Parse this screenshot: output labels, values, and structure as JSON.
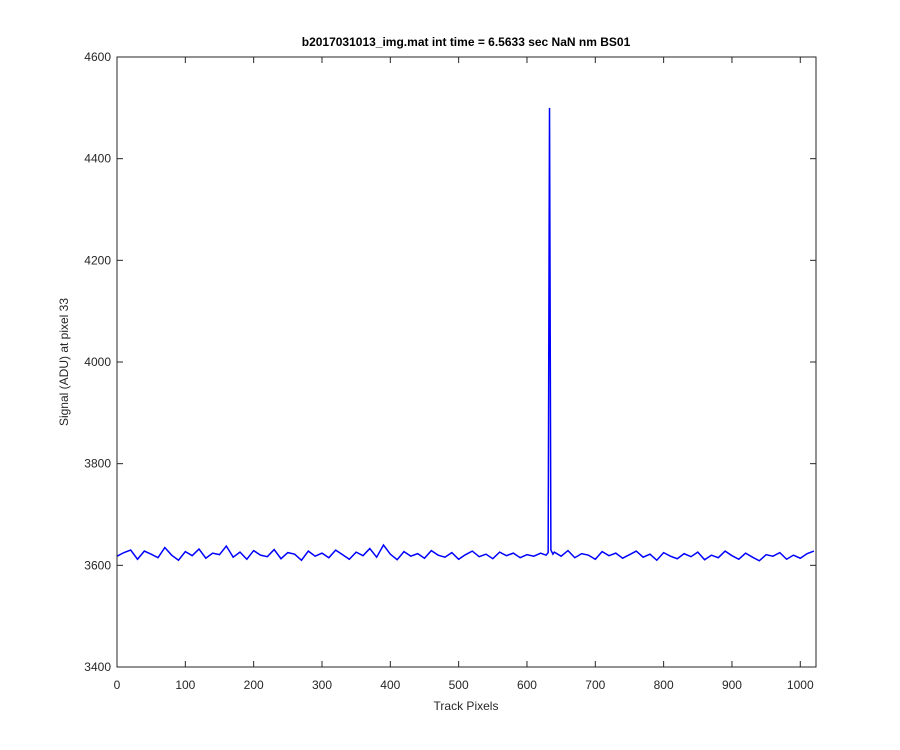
{
  "chart_data": {
    "type": "line",
    "title": "b2017031013_img.mat int time = 6.5633 sec  NaN nm BS01",
    "x_label": "Track Pixels",
    "y_label": "Signal (ADU) at pixel 33",
    "xlim": [
      0,
      1023
    ],
    "ylim": [
      3400,
      4600
    ],
    "xticks": [
      0,
      100,
      200,
      300,
      400,
      500,
      600,
      700,
      800,
      900,
      1000
    ],
    "yticks": [
      3400,
      3600,
      3800,
      4000,
      4200,
      4400,
      4600
    ],
    "x": [
      0,
      10,
      20,
      30,
      40,
      50,
      60,
      70,
      80,
      90,
      100,
      110,
      120,
      130,
      140,
      150,
      160,
      170,
      180,
      190,
      200,
      210,
      220,
      230,
      240,
      250,
      260,
      270,
      280,
      290,
      300,
      310,
      320,
      330,
      340,
      350,
      360,
      370,
      380,
      390,
      400,
      410,
      420,
      430,
      440,
      450,
      460,
      470,
      480,
      490,
      500,
      510,
      520,
      530,
      540,
      550,
      560,
      570,
      580,
      590,
      600,
      610,
      620,
      628,
      631,
      633,
      635,
      638,
      640,
      650,
      660,
      670,
      680,
      690,
      700,
      710,
      720,
      730,
      740,
      750,
      760,
      770,
      780,
      790,
      800,
      810,
      820,
      830,
      840,
      850,
      860,
      870,
      880,
      890,
      900,
      910,
      920,
      930,
      940,
      950,
      960,
      970,
      980,
      990,
      1000,
      1010,
      1020
    ],
    "series": [
      {
        "name": "signal",
        "color": "#0000ff",
        "values": [
          3618,
          3625,
          3630,
          3612,
          3628,
          3622,
          3615,
          3635,
          3620,
          3610,
          3627,
          3619,
          3632,
          3614,
          3624,
          3621,
          3638,
          3616,
          3626,
          3612,
          3629,
          3620,
          3617,
          3631,
          3613,
          3625,
          3622,
          3610,
          3628,
          3618,
          3624,
          3615,
          3630,
          3621,
          3612,
          3626,
          3619,
          3633,
          3616,
          3640,
          3622,
          3611,
          3627,
          3618,
          3623,
          3614,
          3629,
          3620,
          3616,
          3625,
          3612,
          3621,
          3628,
          3617,
          3622,
          3613,
          3626,
          3619,
          3624,
          3615,
          3621,
          3618,
          3624,
          3620,
          3625,
          4500,
          3630,
          3622,
          3626,
          3618,
          3629,
          3615,
          3623,
          3620,
          3612,
          3627,
          3619,
          3624,
          3614,
          3621,
          3628,
          3616,
          3622,
          3610,
          3625,
          3618,
          3613,
          3623,
          3617,
          3626,
          3611,
          3620,
          3615,
          3628,
          3619,
          3612,
          3624,
          3616,
          3609,
          3621,
          3618,
          3625,
          3612,
          3620,
          3614,
          3623,
          3628
        ]
      }
    ]
  }
}
